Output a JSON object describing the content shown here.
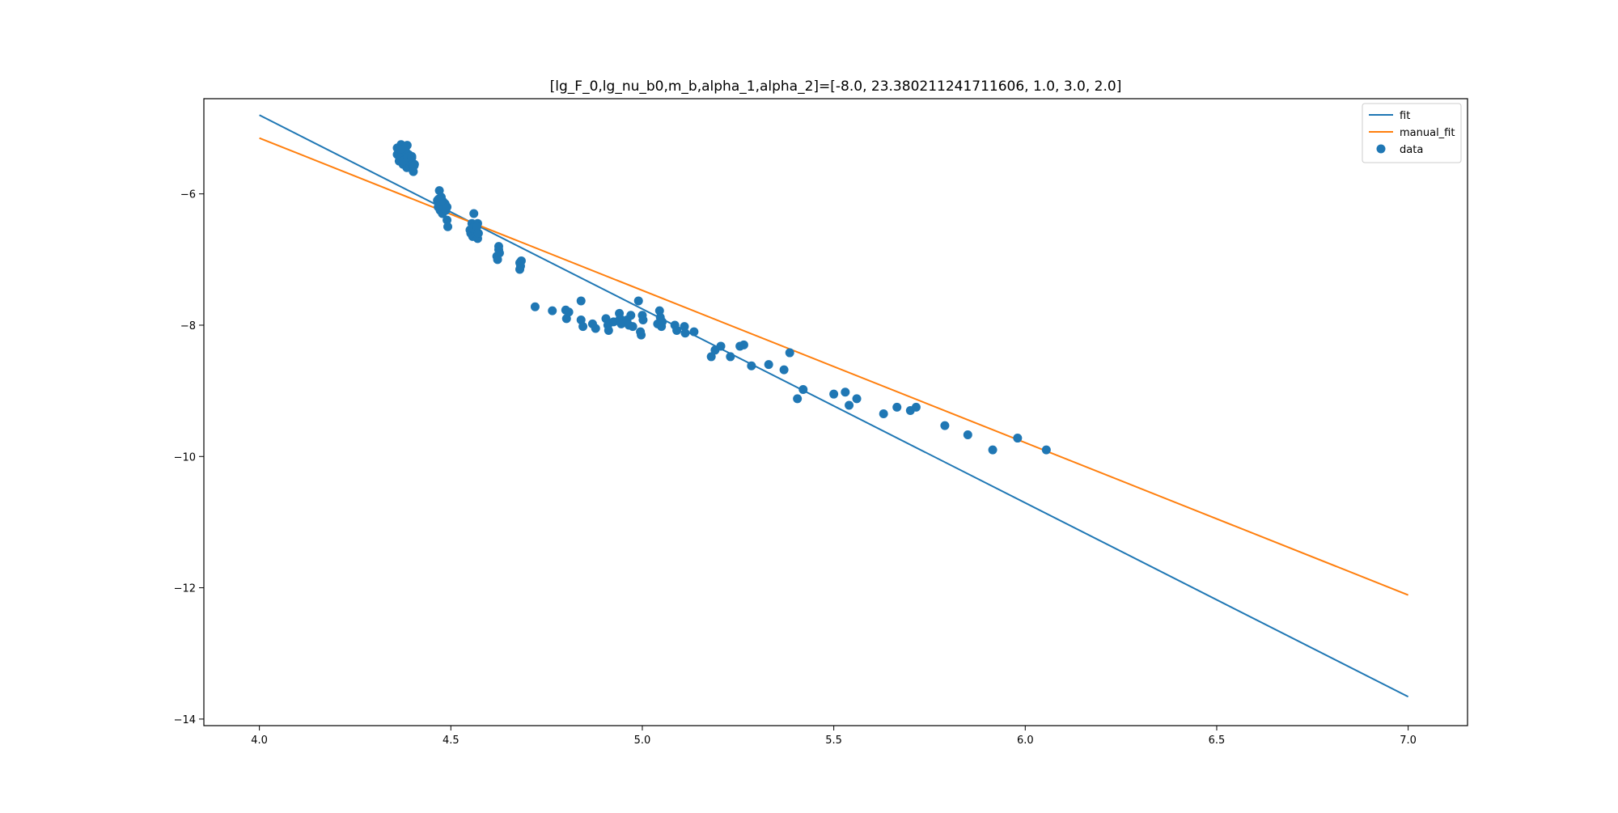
{
  "chart_data": {
    "type": "scatter",
    "title": "[lg_F_0,lg_nu_b0,m_b,alpha_1,alpha_2]=[-8.0, 23.380211241711606, 1.0, 3.0, 2.0]",
    "xlabel": "",
    "ylabel": "",
    "xlim": [
      3.855,
      7.155
    ],
    "ylim": [
      -14.1,
      -4.55
    ],
    "x_ticks": [
      4.0,
      4.5,
      5.0,
      5.5,
      6.0,
      6.5,
      7.0
    ],
    "x_tick_labels": [
      "4.0",
      "4.5",
      "5.0",
      "5.5",
      "6.0",
      "6.5",
      "7.0"
    ],
    "y_ticks": [
      -14,
      -12,
      -10,
      -8,
      -6
    ],
    "y_tick_labels": [
      "−14",
      "−12",
      "−10",
      "−8",
      "−6"
    ],
    "grid": false,
    "legend_position": "top-right",
    "series": [
      {
        "name": "fit",
        "kind": "line",
        "color": "#1f77b4",
        "x": [
          4.0,
          7.0
        ],
        "y": [
          -4.8,
          -13.66
        ]
      },
      {
        "name": "manual_fit",
        "kind": "line",
        "color": "#ff7f0e",
        "x": [
          4.0,
          7.0
        ],
        "y": [
          -5.15,
          -12.11
        ]
      },
      {
        "name": "data",
        "kind": "scatter",
        "color": "#1f77b4",
        "points": [
          [
            4.36,
            -5.3
          ],
          [
            4.36,
            -5.4
          ],
          [
            4.365,
            -5.5
          ],
          [
            4.365,
            -5.35
          ],
          [
            4.37,
            -5.25
          ],
          [
            4.37,
            -5.45
          ],
          [
            4.372,
            -5.38
          ],
          [
            4.375,
            -5.55
          ],
          [
            4.378,
            -5.42
          ],
          [
            4.38,
            -5.28
          ],
          [
            4.38,
            -5.48
          ],
          [
            4.382,
            -5.35
          ],
          [
            4.385,
            -5.6
          ],
          [
            4.386,
            -5.26
          ],
          [
            4.39,
            -5.5
          ],
          [
            4.39,
            -5.4
          ],
          [
            4.393,
            -5.58
          ],
          [
            4.395,
            -5.52
          ],
          [
            4.398,
            -5.45
          ],
          [
            4.4,
            -5.62
          ],
          [
            4.4,
            -5.55
          ],
          [
            4.402,
            -5.66
          ],
          [
            4.405,
            -5.55
          ],
          [
            4.368,
            -5.32
          ],
          [
            4.376,
            -5.5
          ],
          [
            4.387,
            -5.44
          ],
          [
            4.398,
            -5.43
          ],
          [
            4.404,
            -5.57
          ],
          [
            4.465,
            -6.1
          ],
          [
            4.467,
            -6.2
          ],
          [
            4.47,
            -5.95
          ],
          [
            4.47,
            -6.15
          ],
          [
            4.472,
            -6.25
          ],
          [
            4.475,
            -6.05
          ],
          [
            4.477,
            -6.18
          ],
          [
            4.478,
            -6.3
          ],
          [
            4.48,
            -6.12
          ],
          [
            4.482,
            -6.22
          ],
          [
            4.485,
            -6.15
          ],
          [
            4.487,
            -6.25
          ],
          [
            4.49,
            -6.2
          ],
          [
            4.49,
            -6.4
          ],
          [
            4.492,
            -6.5
          ],
          [
            4.468,
            -6.08
          ],
          [
            4.474,
            -6.12
          ],
          [
            4.55,
            -6.55
          ],
          [
            4.552,
            -6.6
          ],
          [
            4.555,
            -6.45
          ],
          [
            4.557,
            -6.65
          ],
          [
            4.56,
            -6.3
          ],
          [
            4.56,
            -6.5
          ],
          [
            4.562,
            -6.55
          ],
          [
            4.565,
            -6.62
          ],
          [
            4.567,
            -6.58
          ],
          [
            4.57,
            -6.68
          ],
          [
            4.57,
            -6.45
          ],
          [
            4.572,
            -6.6
          ],
          [
            4.558,
            -6.52
          ],
          [
            4.568,
            -6.5
          ],
          [
            4.62,
            -6.95
          ],
          [
            4.622,
            -7.0
          ],
          [
            4.625,
            -6.85
          ],
          [
            4.627,
            -6.9
          ],
          [
            4.625,
            -6.8
          ],
          [
            4.68,
            -7.05
          ],
          [
            4.68,
            -7.15
          ],
          [
            4.682,
            -7.1
          ],
          [
            4.684,
            -7.02
          ],
          [
            4.72,
            -7.72
          ],
          [
            4.765,
            -7.78
          ],
          [
            4.8,
            -7.77
          ],
          [
            4.802,
            -7.9
          ],
          [
            4.808,
            -7.8
          ],
          [
            4.84,
            -7.63
          ],
          [
            4.84,
            -7.92
          ],
          [
            4.845,
            -8.02
          ],
          [
            4.87,
            -7.98
          ],
          [
            4.878,
            -8.05
          ],
          [
            4.905,
            -7.9
          ],
          [
            4.91,
            -8.0
          ],
          [
            4.912,
            -8.08
          ],
          [
            4.925,
            -7.95
          ],
          [
            4.94,
            -7.82
          ],
          [
            4.942,
            -7.9
          ],
          [
            4.945,
            -7.98
          ],
          [
            4.96,
            -7.92
          ],
          [
            4.965,
            -8.0
          ],
          [
            4.97,
            -7.85
          ],
          [
            4.975,
            -8.02
          ],
          [
            4.99,
            -7.63
          ],
          [
            4.995,
            -8.1
          ],
          [
            4.997,
            -8.15
          ],
          [
            5.0,
            -7.85
          ],
          [
            5.002,
            -7.92
          ],
          [
            5.04,
            -7.98
          ],
          [
            5.045,
            -7.78
          ],
          [
            5.047,
            -7.88
          ],
          [
            5.05,
            -8.02
          ],
          [
            5.052,
            -7.95
          ],
          [
            5.085,
            -8.0
          ],
          [
            5.09,
            -8.08
          ],
          [
            5.11,
            -8.02
          ],
          [
            5.112,
            -8.12
          ],
          [
            5.135,
            -8.1
          ],
          [
            5.18,
            -8.48
          ],
          [
            5.19,
            -8.38
          ],
          [
            5.205,
            -8.32
          ],
          [
            5.23,
            -8.48
          ],
          [
            5.255,
            -8.32
          ],
          [
            5.265,
            -8.3
          ],
          [
            5.285,
            -8.62
          ],
          [
            5.33,
            -8.6
          ],
          [
            5.37,
            -8.68
          ],
          [
            5.385,
            -8.42
          ],
          [
            5.405,
            -9.12
          ],
          [
            5.42,
            -8.98
          ],
          [
            5.5,
            -9.05
          ],
          [
            5.53,
            -9.02
          ],
          [
            5.54,
            -9.22
          ],
          [
            5.56,
            -9.12
          ],
          [
            5.63,
            -9.35
          ],
          [
            5.665,
            -9.25
          ],
          [
            5.7,
            -9.3
          ],
          [
            5.715,
            -9.25
          ],
          [
            5.79,
            -9.53
          ],
          [
            5.85,
            -9.67
          ],
          [
            5.915,
            -9.9
          ],
          [
            5.98,
            -9.72
          ],
          [
            6.055,
            -9.9
          ]
        ]
      }
    ]
  }
}
